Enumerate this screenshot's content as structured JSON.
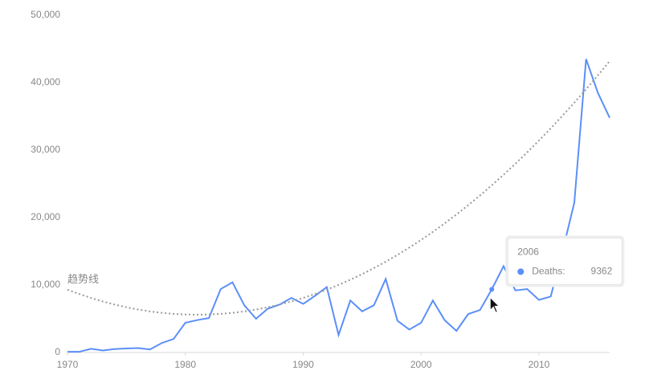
{
  "chart_data": {
    "type": "line",
    "x": [
      1970,
      1971,
      1972,
      1973,
      1974,
      1975,
      1976,
      1977,
      1978,
      1979,
      1980,
      1981,
      1982,
      1983,
      1984,
      1985,
      1986,
      1987,
      1988,
      1989,
      1990,
      1991,
      1992,
      1993,
      1994,
      1995,
      1996,
      1997,
      1998,
      1999,
      2000,
      2001,
      2002,
      2003,
      2004,
      2005,
      2006,
      2007,
      2008,
      2009,
      2010,
      2011,
      2012,
      2013,
      2014,
      2015,
      2016
    ],
    "series": [
      {
        "name": "Deaths",
        "color": "#5b8ff9",
        "values": [
          100,
          100,
          550,
          300,
          500,
          600,
          650,
          450,
          1400,
          2000,
          4400,
          4800,
          5100,
          9400,
          10400,
          7000,
          5000,
          6500,
          7100,
          8100,
          7200,
          8400,
          9700,
          2600,
          7700,
          6100,
          7000,
          10900,
          4700,
          3400,
          4400,
          7700,
          4800,
          3200,
          5700,
          6300,
          9362,
          12800,
          9200,
          9400,
          7800,
          8300,
          15000,
          22200,
          43500,
          38500,
          34800
        ]
      },
      {
        "name": "趋势线",
        "color": "#999999",
        "dashed": true,
        "values": [
          9315,
          8670,
          8087,
          7565,
          7104,
          6705,
          6368,
          6091,
          5876,
          5723,
          5631,
          5600,
          5631,
          5723,
          5876,
          6091,
          6368,
          6705,
          7104,
          7565,
          8087,
          8670,
          9315,
          10021,
          10788,
          11617,
          12508,
          13459,
          14472,
          15547,
          16683,
          17880,
          19139,
          20459,
          21840,
          23283,
          24788,
          26353,
          27980,
          29669,
          31419,
          33230,
          35103,
          37037,
          39032,
          41089,
          43208
        ]
      }
    ],
    "xlim": [
      1970,
      2016
    ],
    "xticks": [
      1970,
      1980,
      1990,
      2000,
      2010
    ],
    "ylim": [
      0,
      50000
    ],
    "yticks": [
      0,
      {
        "value": 10000,
        "label": "10,000"
      },
      {
        "value": 20000,
        "label": "20,000"
      },
      {
        "value": 30000,
        "label": "30,000"
      },
      {
        "value": 40000,
        "label": "40,000"
      },
      {
        "value": 50000,
        "label": "50,000"
      }
    ],
    "tooltip": {
      "title": "2006",
      "label": "Deaths:",
      "value": 9362
    }
  }
}
